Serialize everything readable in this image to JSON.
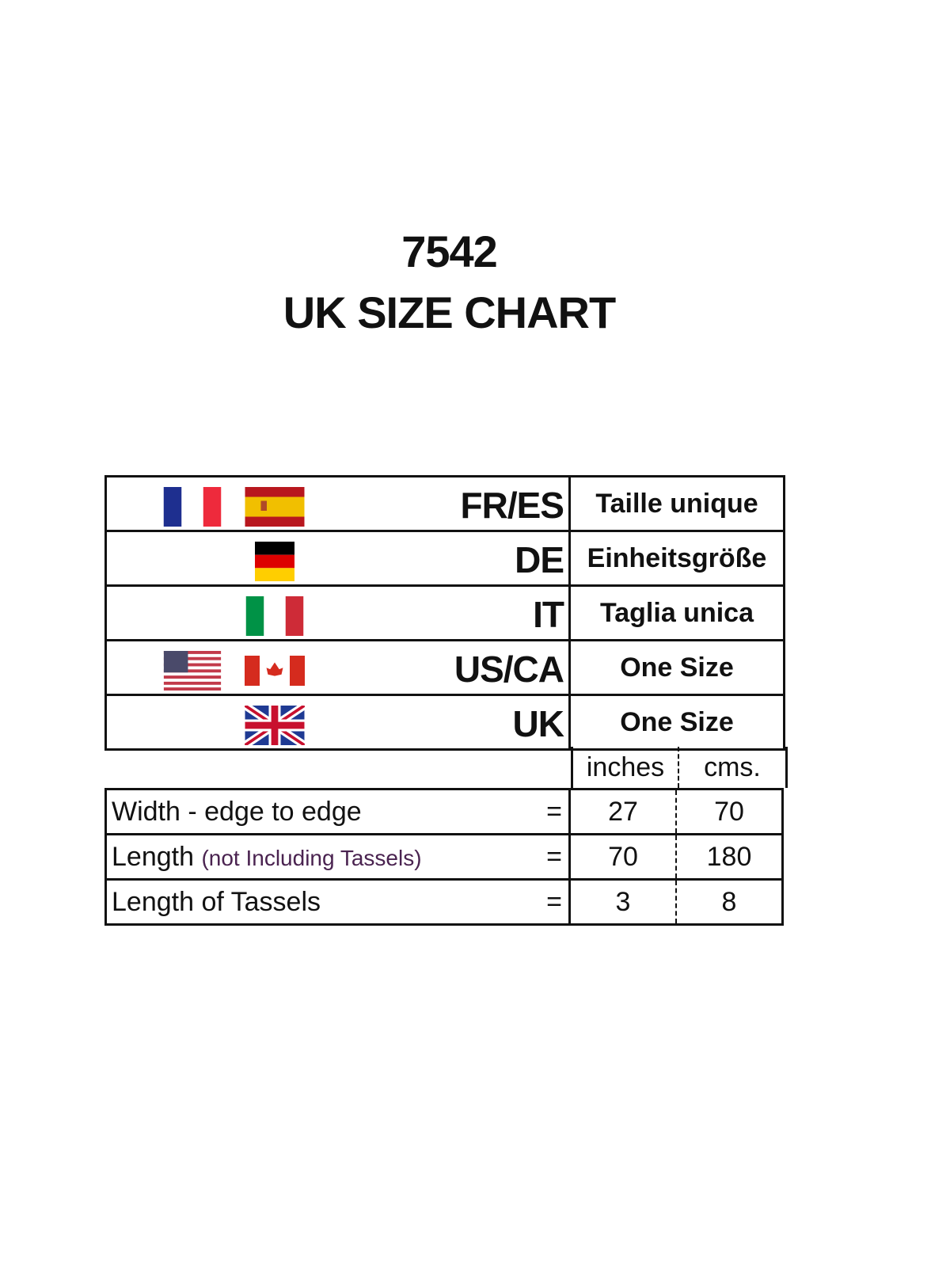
{
  "title": {
    "code": "7542",
    "subtitle": "UK SIZE CHART"
  },
  "size_rows": [
    {
      "region": "FR/ES",
      "flags": [
        "france-flag",
        "spain-flag"
      ],
      "size": "Taille unique"
    },
    {
      "region": "DE",
      "flags": [
        "germany-flag"
      ],
      "size": "Einheitsgröße"
    },
    {
      "region": "IT",
      "flags": [
        "italy-flag"
      ],
      "size": "Taglia unica"
    },
    {
      "region": "US/CA",
      "flags": [
        "usa-flag",
        "canada-flag"
      ],
      "size": "One Size"
    },
    {
      "region": "UK",
      "flags": [
        "uk-flag"
      ],
      "size": "One Size"
    }
  ],
  "units": [
    "inches",
    "cms."
  ],
  "measurements": [
    {
      "label": "Width - edge to edge",
      "note": "",
      "eq": "=",
      "inches": "27",
      "cms": "70"
    },
    {
      "label": "Length",
      "note": "(not Including Tassels)",
      "eq": "=",
      "inches": "70",
      "cms": "180"
    },
    {
      "label": "Length of Tassels",
      "note": "",
      "eq": "=",
      "inches": "3",
      "cms": "8"
    }
  ]
}
